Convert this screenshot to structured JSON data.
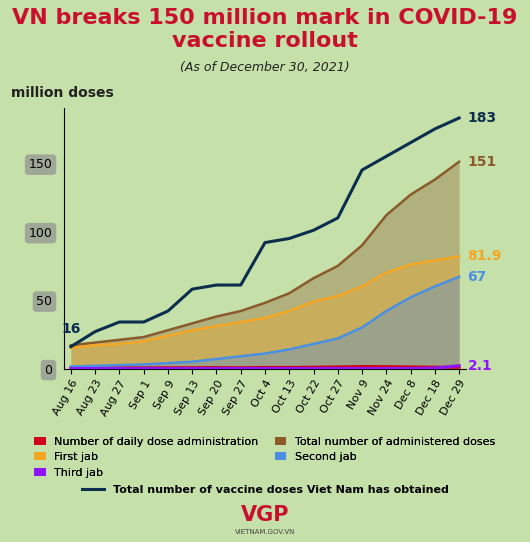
{
  "chart_data": {
    "type": "line",
    "title": "VN breaks 150 million mark in COVID-19 vaccine rollout",
    "subtitle": "(As of December 30, 2021)",
    "y_label": "million doses",
    "source": "VGP",
    "source_url": "VIETNAM.GOV.VN",
    "categories": [
      "Aug 16",
      "Aug 23",
      "Aug 27",
      "Sep 1",
      "Sep 9",
      "Sep 13",
      "Sep 20",
      "Sep 27",
      "Oct 4",
      "Oct 13",
      "Oct 22",
      "Oct 27",
      "Nov 9",
      "Nov 24",
      "Dec 8",
      "Dec 18",
      "Dec 29"
    ],
    "ylim": [
      0,
      190
    ],
    "yticks": [
      0,
      50,
      100,
      150
    ],
    "grid": false,
    "legend": "lower center",
    "series": [
      {
        "name": "Number of daily dose administration",
        "color": "#d0021b",
        "type": "line",
        "values": [
          0.3,
          0.4,
          0.5,
          0.5,
          0.6,
          0.6,
          0.7,
          0.6,
          0.8,
          0.8,
          1.0,
          1.2,
          1.5,
          1.4,
          1.2,
          1.0,
          0.9
        ]
      },
      {
        "name": "Total number of administered doses",
        "color": "#8b5a2b",
        "type": "area",
        "end_label": "151",
        "values": [
          17,
          19,
          21,
          23,
          28,
          33,
          38,
          42,
          48,
          55,
          66,
          75,
          90,
          112,
          127,
          138,
          151
        ]
      },
      {
        "name": "First jab",
        "color": "#f5a623",
        "type": "area",
        "end_label": "81.9",
        "values": [
          15,
          17,
          18,
          20,
          24,
          28,
          31,
          34,
          37,
          42,
          49,
          53,
          60,
          70,
          76,
          79,
          81.9
        ]
      },
      {
        "name": "Second jab",
        "color": "#4a90e2",
        "type": "area",
        "end_label": "67",
        "values": [
          1.5,
          2,
          2.5,
          3,
          4,
          5,
          7,
          9,
          11,
          14,
          18,
          22,
          30,
          42,
          52,
          60,
          67
        ]
      },
      {
        "name": "Third jab",
        "color": "#9013fe",
        "type": "line",
        "end_label": "2.1",
        "values": [
          0,
          0,
          0,
          0,
          0,
          0,
          0,
          0,
          0,
          0,
          0,
          0,
          0,
          0,
          0,
          0.3,
          2.1
        ]
      },
      {
        "name": "Total number of vaccine doses Viet Nam has obtained",
        "color": "#0b2e4f",
        "type": "line",
        "start_label": "16",
        "end_label": "183",
        "values": [
          16,
          27,
          34,
          34,
          42,
          58,
          61,
          61,
          92,
          95,
          101,
          110,
          145,
          155,
          165,
          175,
          183
        ]
      }
    ]
  }
}
